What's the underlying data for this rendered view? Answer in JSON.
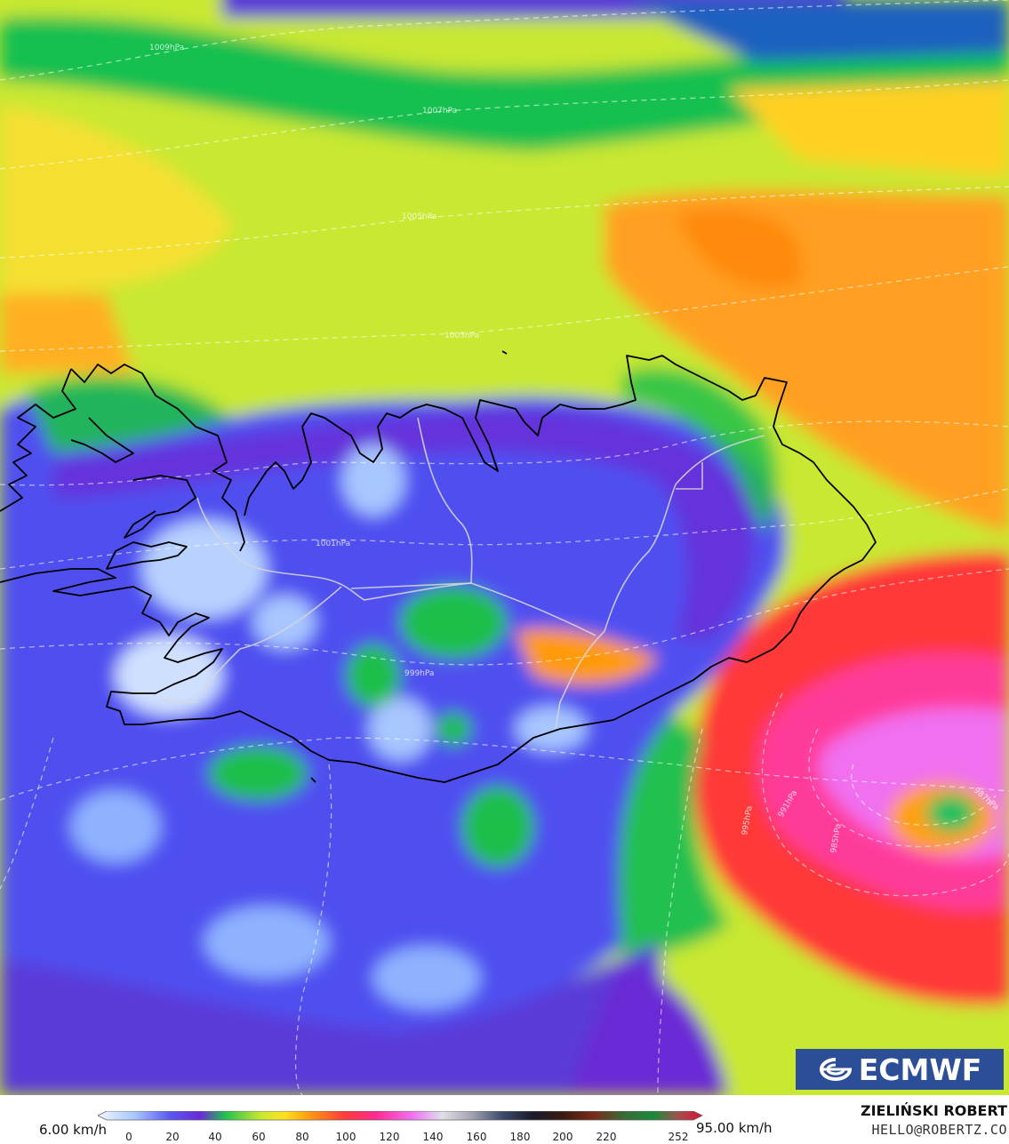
{
  "map": {
    "isobars": [
      "1009hPa",
      "1007hPa",
      "1005hPa",
      "1003hPa",
      "1001hPa",
      "999hPa",
      "995hPa",
      "991hPa",
      "985hPa",
      "987hPa"
    ],
    "palette": [
      "#e8f4ff",
      "#9fc3ff",
      "#4b4ff0",
      "#6a2ad6",
      "#1fbf4a",
      "#00d060",
      "#c8e830",
      "#ffe020",
      "#ff9a10",
      "#ff3a3a",
      "#ff2a90",
      "#f060f0"
    ],
    "colors": {
      "land_outline": "#000000",
      "borders": "#d8d8d8",
      "isobar": "#ffffff"
    }
  },
  "logo": {
    "text": "ECMWF",
    "background": "#2b4e96"
  },
  "legend": {
    "min_label": "6.00 km/h",
    "max_label": "95.00 km/h",
    "ticks": [
      "0",
      "20",
      "40",
      "60",
      "80",
      "100",
      "120",
      "140",
      "160",
      "180",
      "200",
      "220",
      "252"
    ]
  },
  "author": {
    "name": "ZIELIŃSKI ROBERT",
    "email": "HELLO@ROBERTZ.CO"
  }
}
